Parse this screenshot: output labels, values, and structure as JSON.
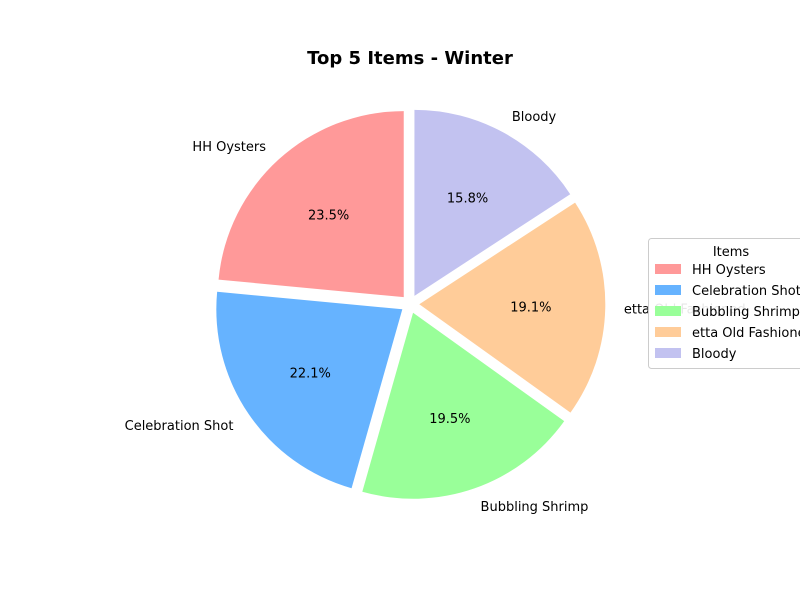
{
  "chart_data": {
    "type": "pie",
    "title": "Top 5 Items - Winter",
    "categories": [
      "HH Oysters",
      "Celebration Shot",
      "Bubbling Shrimp",
      "etta Old Fashioned",
      "Bloody"
    ],
    "values": [
      23.5,
      22.1,
      19.5,
      19.1,
      15.8
    ],
    "percent_labels": [
      "23.5%",
      "22.1%",
      "19.5%",
      "19.1%",
      "15.8%"
    ],
    "colors": [
      "#ff9999",
      "#66b3ff",
      "#99ff99",
      "#ffcc99",
      "#c2c2f0"
    ],
    "start_angle_deg": 90,
    "direction": "counterclockwise",
    "exploded": true,
    "legend": {
      "title": "Items",
      "placement": "center-right",
      "entries": [
        "HH Oysters",
        "Celebration Shot",
        "Bubbling Shrimp",
        "etta Old Fashioned",
        "Bloody"
      ]
    }
  }
}
